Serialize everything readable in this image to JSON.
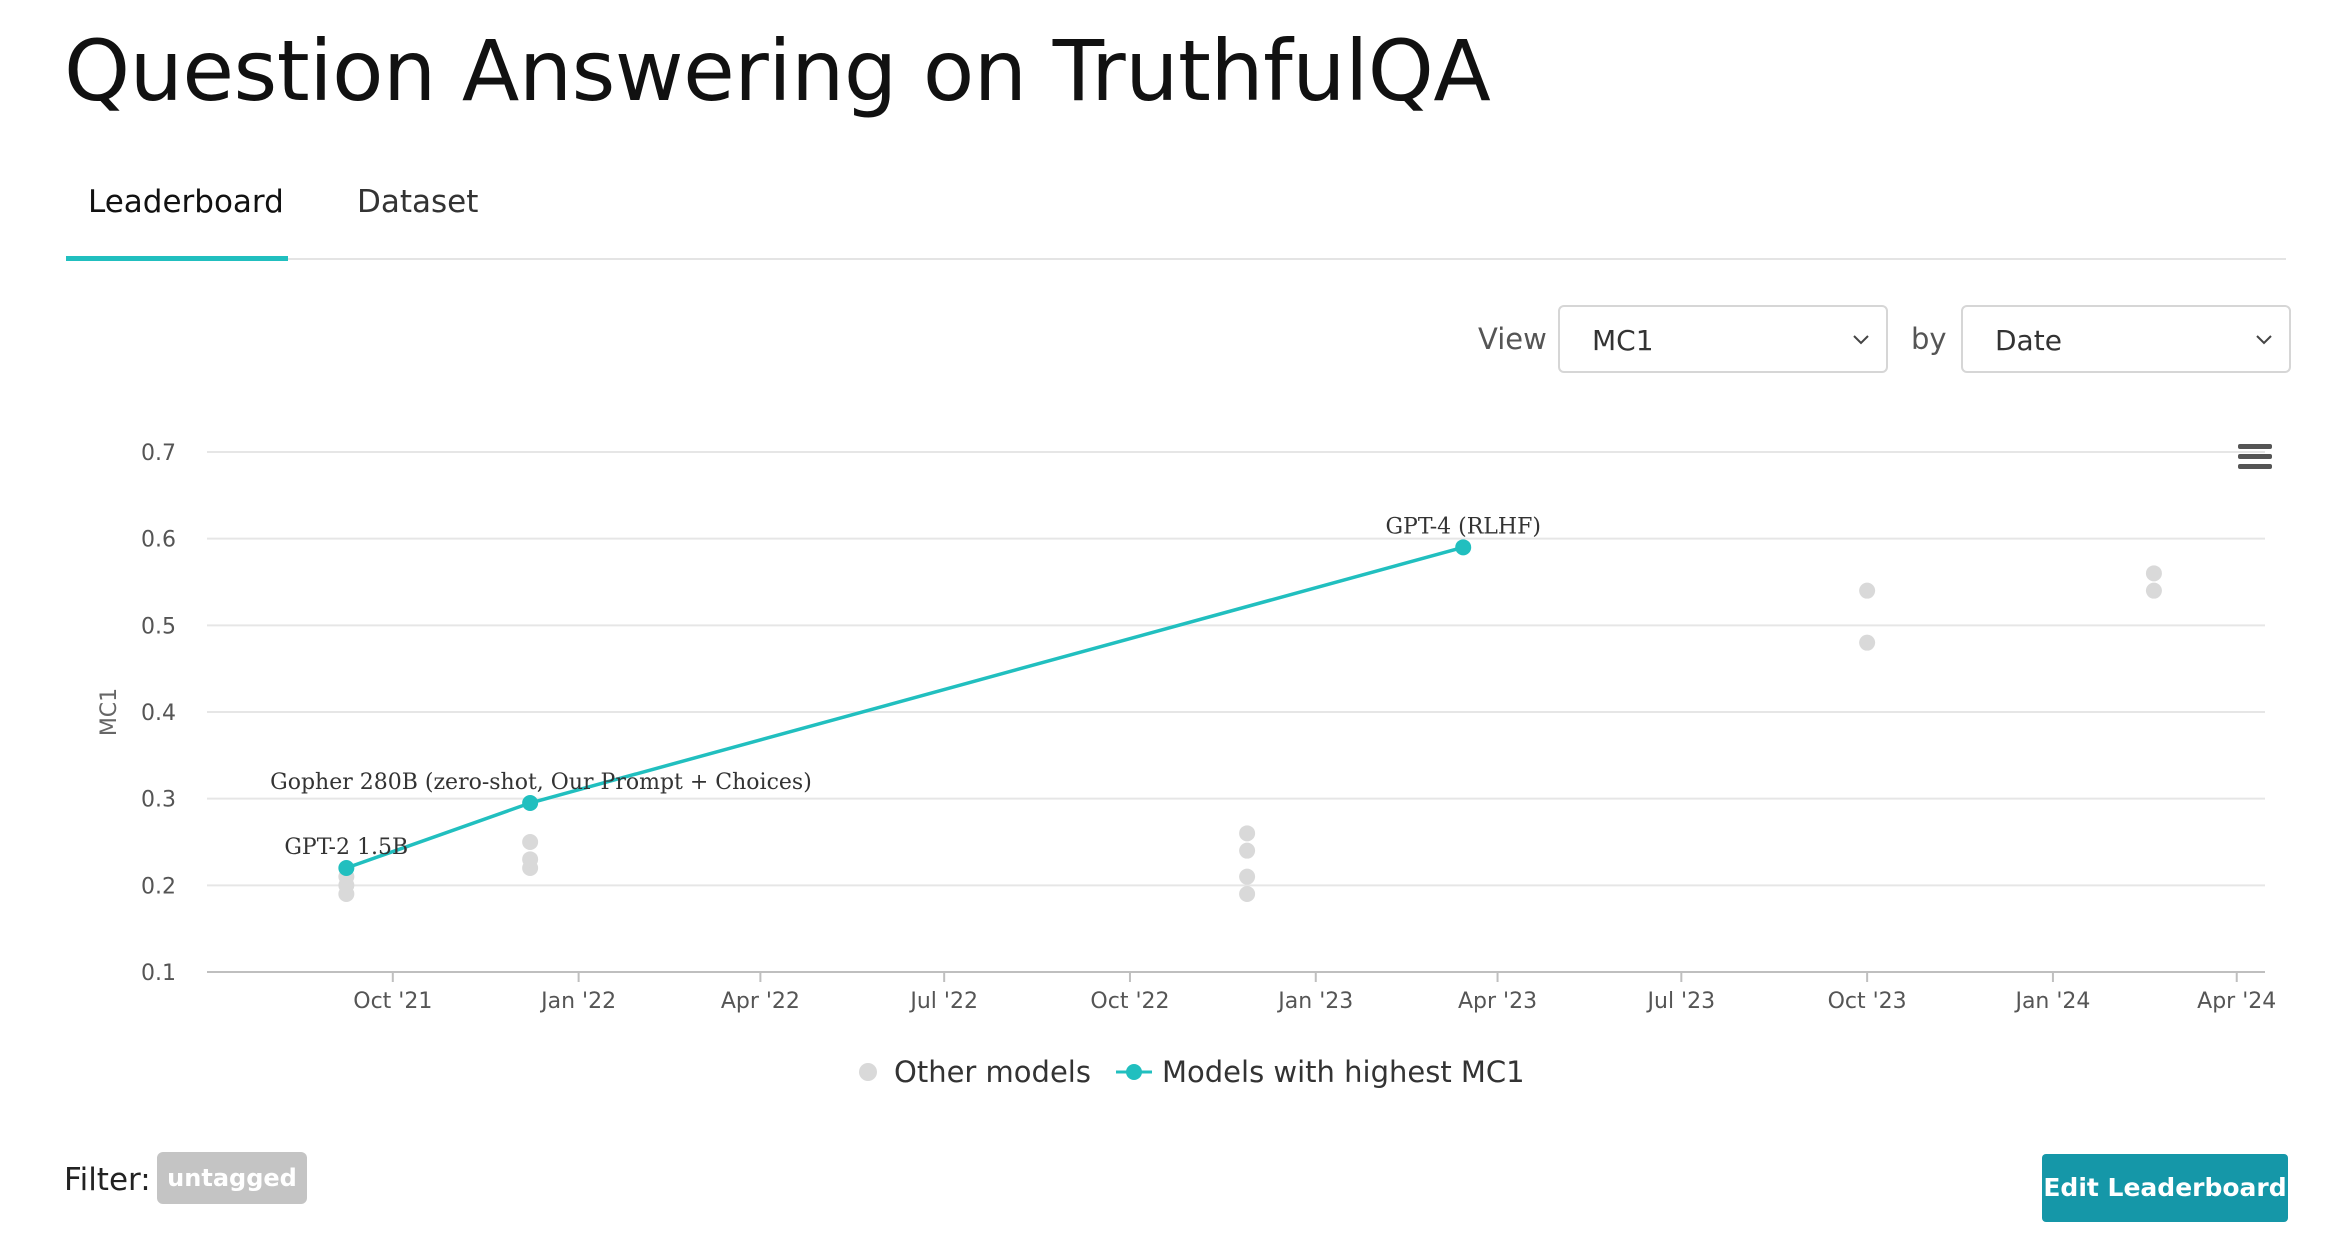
{
  "page": {
    "title": "Question Answering on TruthfulQA"
  },
  "tabs": [
    {
      "label": "Leaderboard",
      "active": true
    },
    {
      "label": "Dataset",
      "active": false
    }
  ],
  "controls": {
    "view_label": "View",
    "metric_value": "MC1",
    "by_label": "by",
    "by_value": "Date"
  },
  "filter": {
    "label": "Filter:",
    "tag": "untagged"
  },
  "edit_button": {
    "label": "Edit Leaderboard"
  },
  "colors": {
    "accent": "#21bfbf",
    "other": "#d9d9d9",
    "button": "#1597a8",
    "tag": "#c4c4c4"
  },
  "icons": {
    "menu": "hamburger-menu-icon",
    "dropdown": "chevron-down-icon"
  },
  "chart_data": {
    "type": "scatter",
    "title": "",
    "xlabel": "",
    "ylabel": "MC1",
    "ylim": [
      0.1,
      0.7
    ],
    "yticks": [
      0.1,
      0.2,
      0.3,
      0.4,
      0.5,
      0.6,
      0.7
    ],
    "x_range": [
      "2021-07-01",
      "2024-04-15"
    ],
    "xticks": [
      {
        "date": "2021-10-01",
        "label": "Oct '21"
      },
      {
        "date": "2022-01-01",
        "label": "Jan '22"
      },
      {
        "date": "2022-04-01",
        "label": "Apr '22"
      },
      {
        "date": "2022-07-01",
        "label": "Jul '22"
      },
      {
        "date": "2022-10-01",
        "label": "Oct '22"
      },
      {
        "date": "2023-01-01",
        "label": "Jan '23"
      },
      {
        "date": "2023-04-01",
        "label": "Apr '23"
      },
      {
        "date": "2023-07-01",
        "label": "Jul '23"
      },
      {
        "date": "2023-10-01",
        "label": "Oct '23"
      },
      {
        "date": "2024-01-01",
        "label": "Jan '24"
      },
      {
        "date": "2024-04-01",
        "label": "Apr '24"
      }
    ],
    "grid": true,
    "legend_position": "bottom-center",
    "series": [
      {
        "name": "Other models",
        "values": [
          {
            "date": "2021-09-08",
            "y": 0.19
          },
          {
            "date": "2021-09-08",
            "y": 0.2
          },
          {
            "date": "2021-09-08",
            "y": 0.21
          },
          {
            "date": "2021-12-08",
            "y": 0.22
          },
          {
            "date": "2021-12-08",
            "y": 0.23
          },
          {
            "date": "2021-12-08",
            "y": 0.25
          },
          {
            "date": "2022-11-28",
            "y": 0.19
          },
          {
            "date": "2022-11-28",
            "y": 0.21
          },
          {
            "date": "2022-11-28",
            "y": 0.24
          },
          {
            "date": "2022-11-28",
            "y": 0.26
          },
          {
            "date": "2023-10-01",
            "y": 0.48
          },
          {
            "date": "2023-10-01",
            "y": 0.54
          },
          {
            "date": "2024-02-20",
            "y": 0.54
          },
          {
            "date": "2024-02-20",
            "y": 0.56
          }
        ]
      },
      {
        "name": "Models with highest MC1",
        "values": [
          {
            "date": "2021-09-08",
            "y": 0.22,
            "label": "GPT-2 1.5B"
          },
          {
            "date": "2021-12-08",
            "y": 0.295,
            "label": "Gopher 280B (zero-shot, Our Prompt + Choices)"
          },
          {
            "date": "2023-03-15",
            "y": 0.59,
            "label": "GPT-4 (RLHF)"
          }
        ]
      }
    ]
  }
}
